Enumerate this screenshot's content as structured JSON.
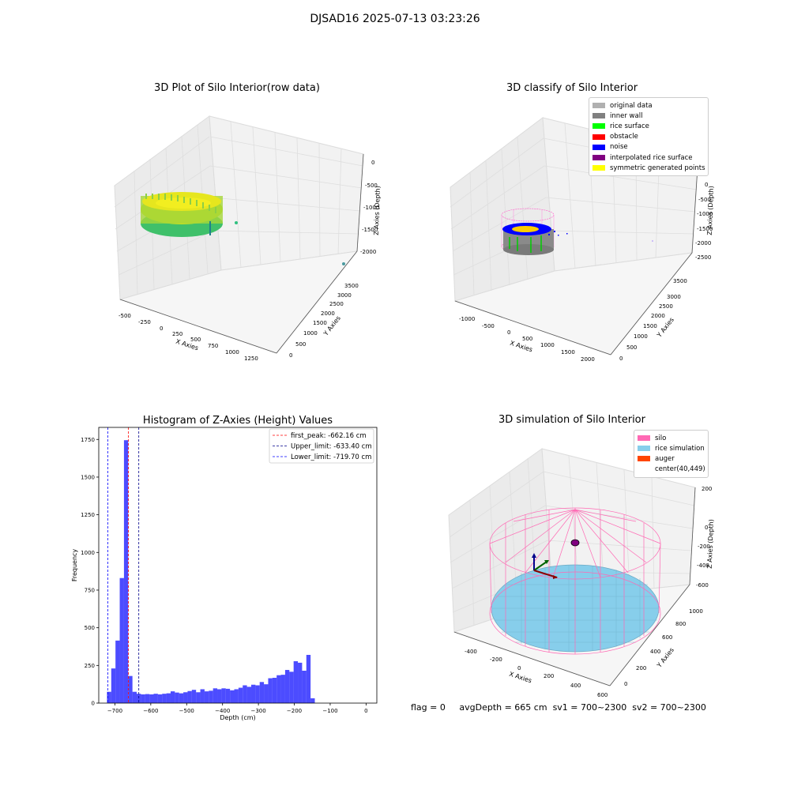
{
  "suptitle": "DJSAD16 2025-07-13 03:23:26",
  "panels": {
    "raw": {
      "title": "3D Plot of Silo Interior(row data)",
      "xlabel": "X Axies",
      "ylabel": "Y Axies",
      "zlabel": "Z Axies (Depth)",
      "xticks": [
        "-500",
        "-250",
        "0",
        "250",
        "500",
        "750",
        "1000",
        "1250"
      ],
      "yticks": [
        "0",
        "500",
        "1000",
        "1500",
        "2000",
        "2500",
        "3000",
        "3500"
      ],
      "zticks": [
        "0",
        "-500",
        "-1000",
        "-1500",
        "-2000"
      ]
    },
    "classify": {
      "title": "3D classify of Silo Interior",
      "xlabel": "X Axies",
      "ylabel": "Y Axies",
      "zlabel": "Z Axies (Depth)",
      "xticks": [
        "-1000",
        "-500",
        "0",
        "500",
        "1000",
        "1500",
        "2000"
      ],
      "yticks": [
        "0",
        "500",
        "1000",
        "1500",
        "2000",
        "2500",
        "3000",
        "3500"
      ],
      "zticks": [
        "0",
        "-500",
        "-1000",
        "-1500",
        "-2000",
        "-2500"
      ],
      "legend": [
        {
          "label": "original data",
          "color": "#b0b0b0"
        },
        {
          "label": "inner wall",
          "color": "#808080"
        },
        {
          "label": "rice surface",
          "color": "#00ff00"
        },
        {
          "label": "obstacle",
          "color": "#ff0000"
        },
        {
          "label": "noise",
          "color": "#0000ff"
        },
        {
          "label": "interpolated rice surface",
          "color": "#800080"
        },
        {
          "label": "symmetric generated points",
          "color": "#ffff00"
        }
      ]
    },
    "simulation": {
      "title": "3D simulation of Silo Interior",
      "xlabel": "X Axies",
      "ylabel": "Y Axies",
      "zlabel": "Z Axies (Depth)",
      "xticks": [
        "-400",
        "-200",
        "0",
        "200",
        "400",
        "600"
      ],
      "yticks": [
        "0",
        "200",
        "400",
        "600",
        "800",
        "1000"
      ],
      "zticks": [
        "200",
        "0",
        "-200",
        "-400",
        "-600"
      ],
      "legend": [
        {
          "label": "silo",
          "color": "#ff69b4"
        },
        {
          "label": "rice simulation",
          "color": "#87ceeb"
        },
        {
          "label": "auger",
          "color": "#ff4500"
        },
        {
          "label": "center(40,449)",
          "color": ""
        }
      ]
    }
  },
  "status": {
    "flag": "flag = 0",
    "avg_depth": "avgDepth = 665 cm",
    "sv1": "sv1 = 700~2300",
    "sv2": "sv2 = 700~2300"
  },
  "chart_data": [
    {
      "type": "scatter",
      "title": "3D Plot of Silo Interior(row data)",
      "xlabel": "X Axies",
      "ylabel": "Y Axies",
      "zlabel": "Z Axies (Depth)",
      "xlim": [
        -600,
        1350
      ],
      "ylim": [
        0,
        3800
      ],
      "zlim": [
        -2200,
        100
      ],
      "series": [
        {
          "name": "",
          "points": [
            {
              "x": 0,
              "y": 450,
              "z": -650
            },
            {
              "x": 40,
              "y": 449,
              "z": -660
            }
          ]
        }
      ]
    },
    {
      "type": "scatter",
      "title": "3D classify of Silo Interior",
      "xlabel": "X Axies",
      "ylabel": "Y Axies",
      "zlabel": "Z Axies (Depth)",
      "xlim": [
        -1200,
        2100
      ],
      "ylim": [
        0,
        3800
      ],
      "zlim": [
        -2800,
        100
      ],
      "series": [
        {
          "name": "original data"
        },
        {
          "name": "inner wall"
        },
        {
          "name": "rice surface"
        },
        {
          "name": "obstacle"
        },
        {
          "name": "noise"
        },
        {
          "name": "interpolated rice surface"
        },
        {
          "name": "symmetric generated points"
        }
      ]
    },
    {
      "type": "bar",
      "title": "Histogram of Z-Axies (Height) Values",
      "xlabel": "Depth (cm)",
      "ylabel": "Frequency",
      "xlim": [
        -745,
        30
      ],
      "ylim": [
        0,
        1830
      ],
      "xticks": [
        -700,
        -600,
        -500,
        -400,
        -300,
        -200,
        -100,
        0
      ],
      "yticks": [
        0,
        250,
        500,
        750,
        1000,
        1250,
        1500,
        1750
      ],
      "bin_start": -722,
      "bin_width": 11.82,
      "values": [
        75,
        230,
        415,
        830,
        1745,
        180,
        75,
        62,
        58,
        60,
        58,
        62,
        58,
        62,
        65,
        78,
        70,
        65,
        72,
        80,
        88,
        72,
        92,
        78,
        82,
        98,
        92,
        98,
        95,
        85,
        92,
        102,
        118,
        108,
        122,
        118,
        140,
        125,
        165,
        168,
        185,
        188,
        220,
        208,
        278,
        268,
        215,
        320,
        32
      ],
      "lines": [
        {
          "label": "first_peak: -662.16 cm",
          "x": -662.16,
          "color": "#ff0000"
        },
        {
          "label": "Upper_limit: -633.40 cm",
          "x": -633.4,
          "color": "#00008b"
        },
        {
          "label": "Lower_limit: -719.70 cm",
          "x": -719.7,
          "color": "#0000ff"
        }
      ]
    },
    {
      "type": "scatter",
      "title": "3D simulation of Silo Interior",
      "xlabel": "X Axies",
      "ylabel": "Y Axies",
      "zlabel": "Z Axies (Depth)",
      "xlim": [
        -500,
        650
      ],
      "ylim": [
        0,
        1000
      ],
      "zlim": [
        -700,
        300
      ],
      "series": [
        {
          "name": "silo"
        },
        {
          "name": "rice simulation"
        },
        {
          "name": "auger"
        },
        {
          "name": "center(40,449)"
        }
      ]
    }
  ]
}
